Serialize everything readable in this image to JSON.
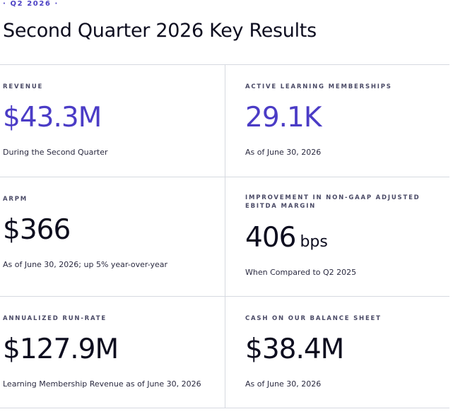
{
  "header": {
    "eyebrow": "· Q2 2026 ·",
    "title": "Second Quarter 2026 Key Results"
  },
  "metrics": [
    {
      "label": "REVENUE",
      "value": "$43.3M",
      "unit": "",
      "note": "During the Second Quarter",
      "accent": true
    },
    {
      "label": "ACTIVE LEARNING MEMBERSHIPS",
      "value": "29.1K",
      "unit": "",
      "note": "As of June 30, 2026",
      "accent": true
    },
    {
      "label": "ARPM",
      "value": "$366",
      "unit": "",
      "note": "As of June 30, 2026; up 5% year-over-year",
      "accent": false
    },
    {
      "label": "IMPROVEMENT IN NON-GAAP ADJUSTED EBITDA MARGIN",
      "value": "406",
      "unit": "bps",
      "note": "When Compared to Q2 2025",
      "accent": false
    },
    {
      "label": "ANNUALIZED RUN-RATE",
      "value": "$127.9M",
      "unit": "",
      "note": "Learning Membership Revenue as of June 30, 2026",
      "accent": false
    },
    {
      "label": "CASH ON OUR BALANCE SHEET",
      "value": "$38.4M",
      "unit": "",
      "note": "As of June 30, 2026",
      "accent": false
    }
  ],
  "colors": {
    "accent": "#4b3cc6",
    "text": "#0d0d1f",
    "divider": "#d6d9e0"
  }
}
